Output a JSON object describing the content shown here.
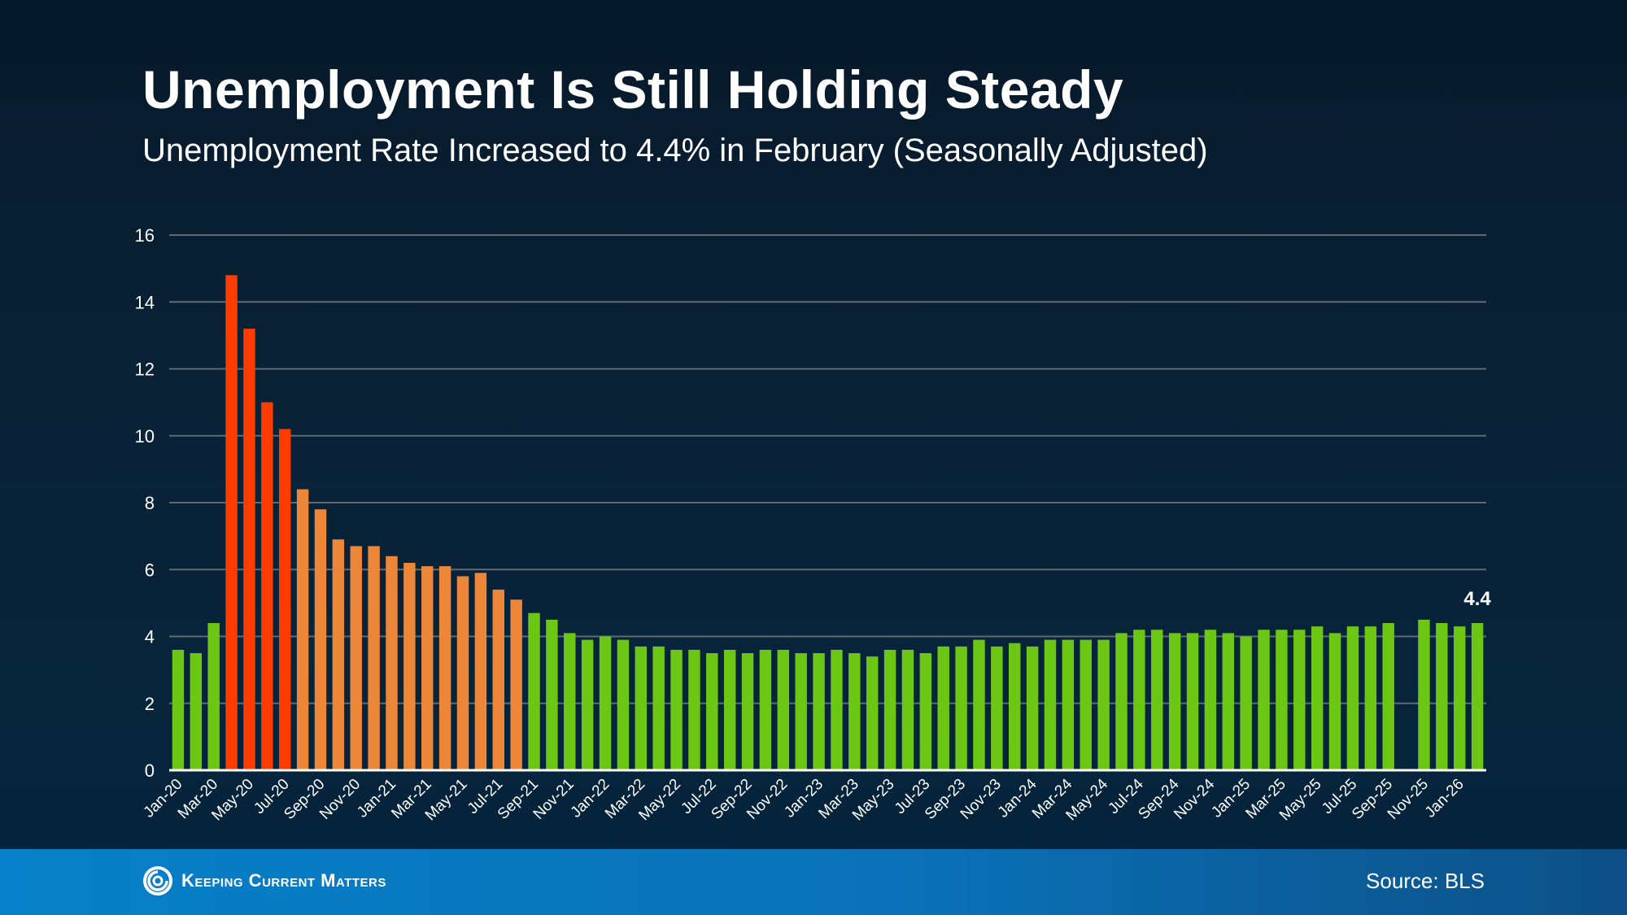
{
  "header": {
    "title": "Unemployment Is Still Holding Steady",
    "subtitle": "Unemployment Rate Increased to 4.4% in February (Seasonally Adjusted)"
  },
  "footer": {
    "logo_text": "Keeping Current Matters",
    "logo_icon": "swirl-icon",
    "source": "Source: BLS"
  },
  "colors": {
    "normal": "#6cc614",
    "peak": "#ff3c00",
    "elevated": "#ec873a",
    "grid": "#5f6a72",
    "axis": "#ffffff"
  },
  "chart_data": {
    "type": "bar",
    "title": "Unemployment Is Still Holding Steady",
    "subtitle": "Unemployment Rate Increased to 4.4% in February (Seasonally Adjusted)",
    "xlabel": "",
    "ylabel": "",
    "ylim": [
      0,
      16
    ],
    "yticks": [
      0,
      2,
      4,
      6,
      8,
      10,
      12,
      14,
      16
    ],
    "grid": true,
    "legend": "none",
    "categories": [
      "Jan-20",
      "Feb-20",
      "Mar-20",
      "Apr-20",
      "May-20",
      "Jun-20",
      "Jul-20",
      "Aug-20",
      "Sep-20",
      "Oct-20",
      "Nov-20",
      "Dec-20",
      "Jan-21",
      "Feb-21",
      "Mar-21",
      "Apr-21",
      "May-21",
      "Jun-21",
      "Jul-21",
      "Aug-21",
      "Sep-21",
      "Oct-21",
      "Nov-21",
      "Dec-21",
      "Jan-22",
      "Feb-22",
      "Mar-22",
      "Apr-22",
      "May-22",
      "Jun-22",
      "Jul-22",
      "Aug-22",
      "Sep-22",
      "Oct-22",
      "Nov-22",
      "Dec-22",
      "Jan-23",
      "Feb-23",
      "Mar-23",
      "Apr-23",
      "May-23",
      "Jun-23",
      "Jul-23",
      "Aug-23",
      "Sep-23",
      "Oct-23",
      "Nov-23",
      "Dec-23",
      "Jan-24",
      "Feb-24",
      "Mar-24",
      "Apr-24",
      "May-24",
      "Jun-24",
      "Jul-24",
      "Aug-24",
      "Sep-24",
      "Oct-24",
      "Nov-24",
      "Dec-24",
      "Jan-25",
      "Feb-25",
      "Mar-25",
      "Apr-25",
      "May-25",
      "Jun-25",
      "Jul-25",
      "Aug-25",
      "Sep-25",
      "Oct-25",
      "Nov-25",
      "Dec-25",
      "Jan-26",
      "Feb-26"
    ],
    "tick_labels": [
      "Jan-20",
      "Mar-20",
      "May-20",
      "Jul-20",
      "Sep-20",
      "Nov-20",
      "Jan-21",
      "Mar-21",
      "May-21",
      "Jul-21",
      "Sep-21",
      "Nov-21",
      "Jan-22",
      "Mar-22",
      "May-22",
      "Jul-22",
      "Sep-22",
      "Nov-22",
      "Jan-23",
      "Mar-23",
      "May-23",
      "Jul-23",
      "Sep-23",
      "Nov-23",
      "Jan-24",
      "Mar-24",
      "May-24",
      "Jul-24",
      "Sep-24",
      "Nov-24",
      "Jan-25",
      "Mar-25",
      "May-25",
      "Jul-25",
      "Sep-25",
      "Nov-25",
      "Jan-26"
    ],
    "values": [
      3.6,
      3.5,
      4.4,
      14.8,
      13.2,
      11.0,
      10.2,
      8.4,
      7.8,
      6.9,
      6.7,
      6.7,
      6.4,
      6.2,
      6.1,
      6.1,
      5.8,
      5.9,
      5.4,
      5.1,
      4.7,
      4.5,
      4.1,
      3.9,
      4.0,
      3.9,
      3.7,
      3.7,
      3.6,
      3.6,
      3.5,
      3.6,
      3.5,
      3.6,
      3.6,
      3.5,
      3.5,
      3.6,
      3.5,
      3.4,
      3.6,
      3.6,
      3.5,
      3.7,
      3.7,
      3.9,
      3.7,
      3.8,
      3.7,
      3.9,
      3.9,
      3.9,
      3.9,
      4.1,
      4.2,
      4.2,
      4.1,
      4.1,
      4.2,
      4.1,
      4.0,
      4.2,
      4.2,
      4.2,
      4.3,
      4.1,
      4.3,
      4.3,
      4.4,
      null,
      4.5,
      4.4,
      4.3,
      4.4
    ],
    "bar_categories": [
      "normal",
      "normal",
      "normal",
      "peak",
      "peak",
      "peak",
      "peak",
      "elevated",
      "elevated",
      "elevated",
      "elevated",
      "elevated",
      "elevated",
      "elevated",
      "elevated",
      "elevated",
      "elevated",
      "elevated",
      "elevated",
      "elevated",
      "normal",
      "normal",
      "normal",
      "normal",
      "normal",
      "normal",
      "normal",
      "normal",
      "normal",
      "normal",
      "normal",
      "normal",
      "normal",
      "normal",
      "normal",
      "normal",
      "normal",
      "normal",
      "normal",
      "normal",
      "normal",
      "normal",
      "normal",
      "normal",
      "normal",
      "normal",
      "normal",
      "normal",
      "normal",
      "normal",
      "normal",
      "normal",
      "normal",
      "normal",
      "normal",
      "normal",
      "normal",
      "normal",
      "normal",
      "normal",
      "normal",
      "normal",
      "normal",
      "normal",
      "normal",
      "normal",
      "normal",
      "normal",
      "normal",
      "normal",
      "normal",
      "normal",
      "normal",
      "normal"
    ],
    "annotations": [
      {
        "category": "Feb-26",
        "text": "4.4"
      }
    ]
  }
}
